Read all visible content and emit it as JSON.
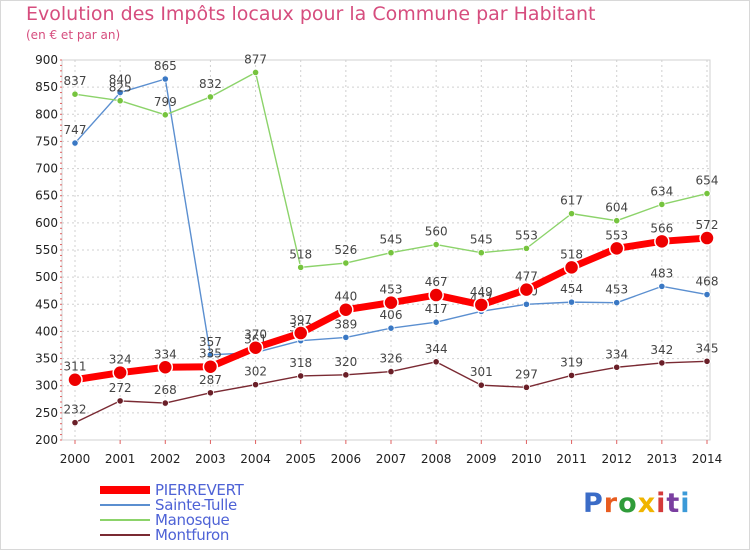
{
  "header": {
    "title": "Evolution des Impôts locaux pour la Commune par Habitant",
    "subtitle": "(en € et par an)"
  },
  "logo": {
    "text": "Proxiti",
    "colors": [
      "#3b6cc7",
      "#e85c1f",
      "#2f9c3a",
      "#f0b400",
      "#d43a3a",
      "#7a3fa0",
      "#3b9ad8"
    ]
  },
  "chart_data": {
    "type": "line",
    "title": "Evolution des Impôts locaux pour la Commune par Habitant",
    "subtitle": "(en € et par an)",
    "xlabel": "",
    "ylabel": "",
    "x": [
      "2000",
      "2001",
      "2002",
      "2003",
      "2004",
      "2005",
      "2006",
      "2007",
      "2008",
      "2009",
      "2010",
      "2011",
      "2012",
      "2013",
      "2014"
    ],
    "ylim": [
      200,
      900
    ],
    "yticks": [
      "200",
      "250",
      "300",
      "350",
      "400",
      "450",
      "500",
      "550",
      "600",
      "650",
      "700",
      "750",
      "800",
      "850",
      "900"
    ],
    "grid": true,
    "legend_position": "bottom-left",
    "series": [
      {
        "name": "Sainte-Tulle",
        "color": "#5b8fd0",
        "marker": "#3a78c4",
        "values": [
          747,
          840,
          865,
          357,
          361,
          383,
          389,
          406,
          417,
          437,
          450,
          454,
          453,
          483,
          468
        ]
      },
      {
        "name": "Manosque",
        "color": "#8cd36a",
        "marker": "#76c43e",
        "values": [
          837,
          825,
          799,
          832,
          877,
          518,
          526,
          545,
          560,
          545,
          553,
          617,
          604,
          634,
          654
        ]
      },
      {
        "name": "Montfuron",
        "color": "#7a2a33",
        "marker": "#6a1f28",
        "values": [
          232,
          272,
          268,
          287,
          302,
          318,
          320,
          326,
          344,
          301,
          297,
          319,
          334,
          342,
          345
        ]
      },
      {
        "name": "PIERREVERT",
        "color": "#ff0000",
        "marker": "#ee0000",
        "values": [
          311,
          324,
          334,
          335,
          370,
          397,
          440,
          453,
          467,
          449,
          477,
          518,
          553,
          566,
          572
        ]
      }
    ],
    "legend": [
      {
        "name": "PIERREVERT",
        "color": "#ff0000"
      },
      {
        "name": "Sainte-Tulle",
        "color": "#5b8fd0"
      },
      {
        "name": "Manosque",
        "color": "#8cd36a"
      },
      {
        "name": "Montfuron",
        "color": "#7a2a33"
      }
    ]
  }
}
